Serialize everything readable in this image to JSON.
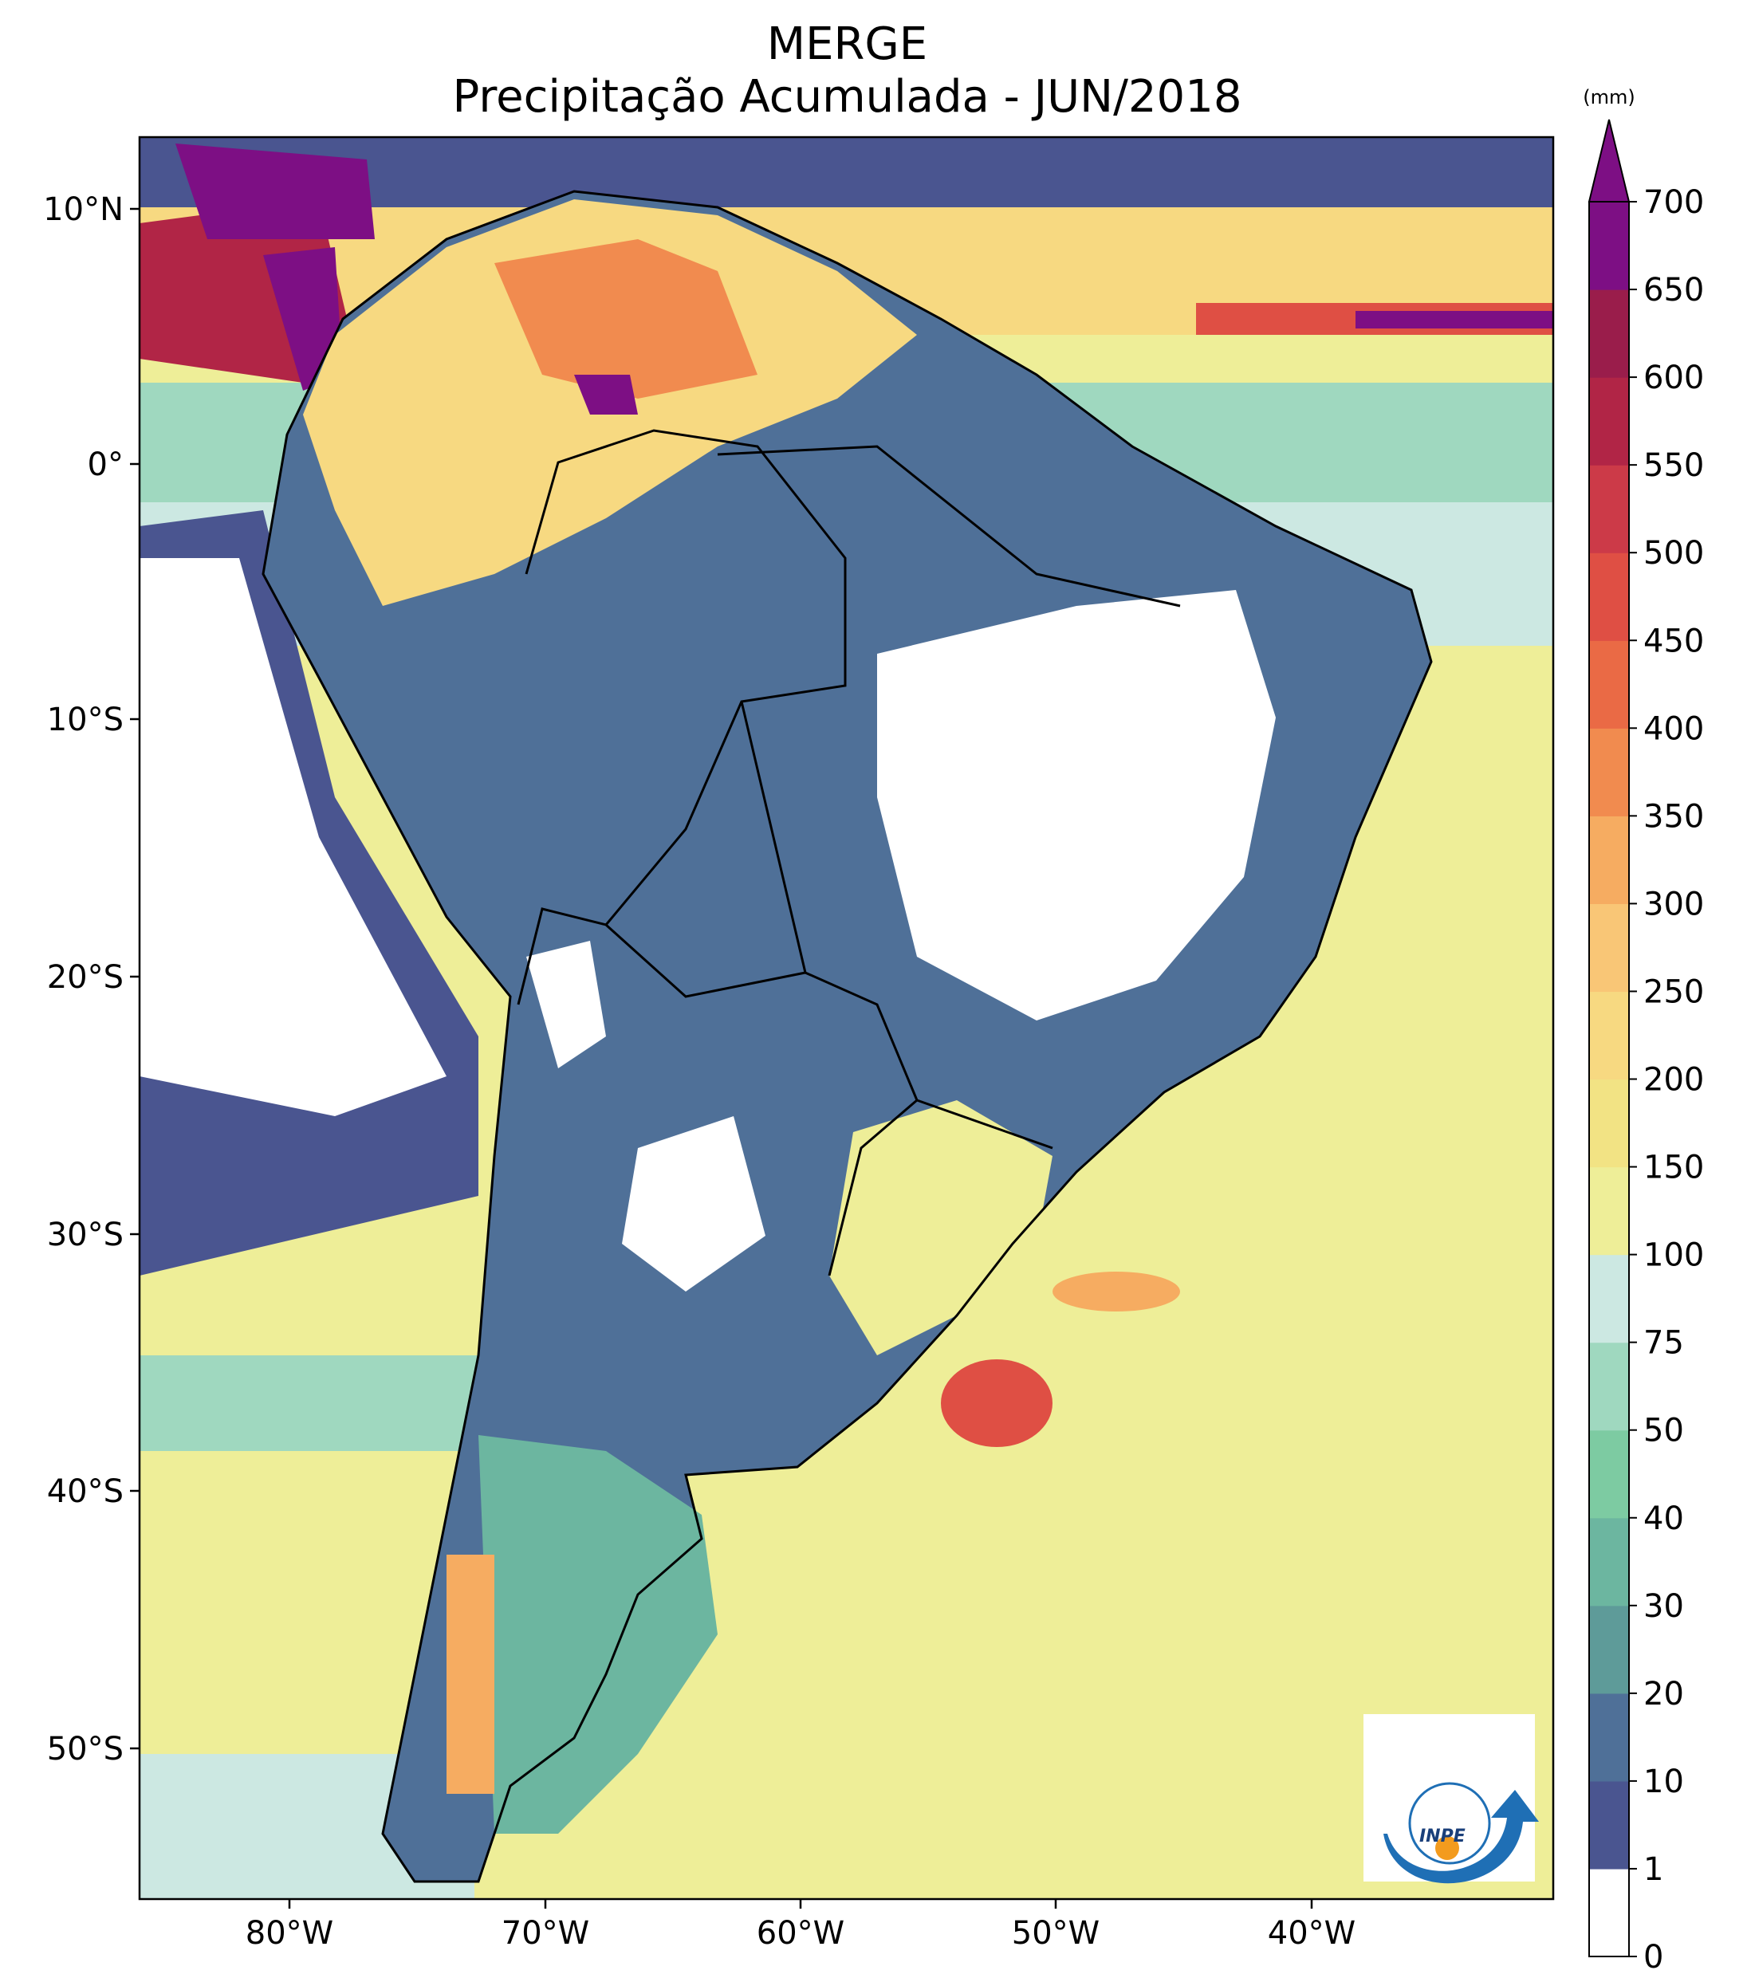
{
  "title": {
    "line1": "MERGE",
    "line2": "Precipitação Acumulada - JUN/2018"
  },
  "axes": {
    "lat_ticks": [
      "10°N",
      "0°",
      "10°S",
      "20°S",
      "30°S",
      "40°S",
      "50°S"
    ],
    "lon_ticks": [
      "80°W",
      "70°W",
      "60°W",
      "50°W",
      "40°W"
    ]
  },
  "colorbar": {
    "unit": "(mm)",
    "levels": [
      "0",
      "1",
      "10",
      "20",
      "30",
      "40",
      "50",
      "75",
      "100",
      "150",
      "200",
      "250",
      "300",
      "350",
      "400",
      "450",
      "500",
      "550",
      "600",
      "650",
      "700"
    ],
    "colors": [
      "#ffffff",
      "#4a5590",
      "#4f7098",
      "#5e9b99",
      "#6cb6a0",
      "#7dcba2",
      "#9fd8bf",
      "#cce8e2",
      "#eeee98",
      "#f2e384",
      "#f7d981",
      "#f9c676",
      "#f6ac61",
      "#f18b4f",
      "#ea6a45",
      "#df4f44",
      "#cc3a48",
      "#b12546",
      "#9a1d4b",
      "#7d0f84"
    ]
  },
  "logo": {
    "text": "INPE"
  }
}
